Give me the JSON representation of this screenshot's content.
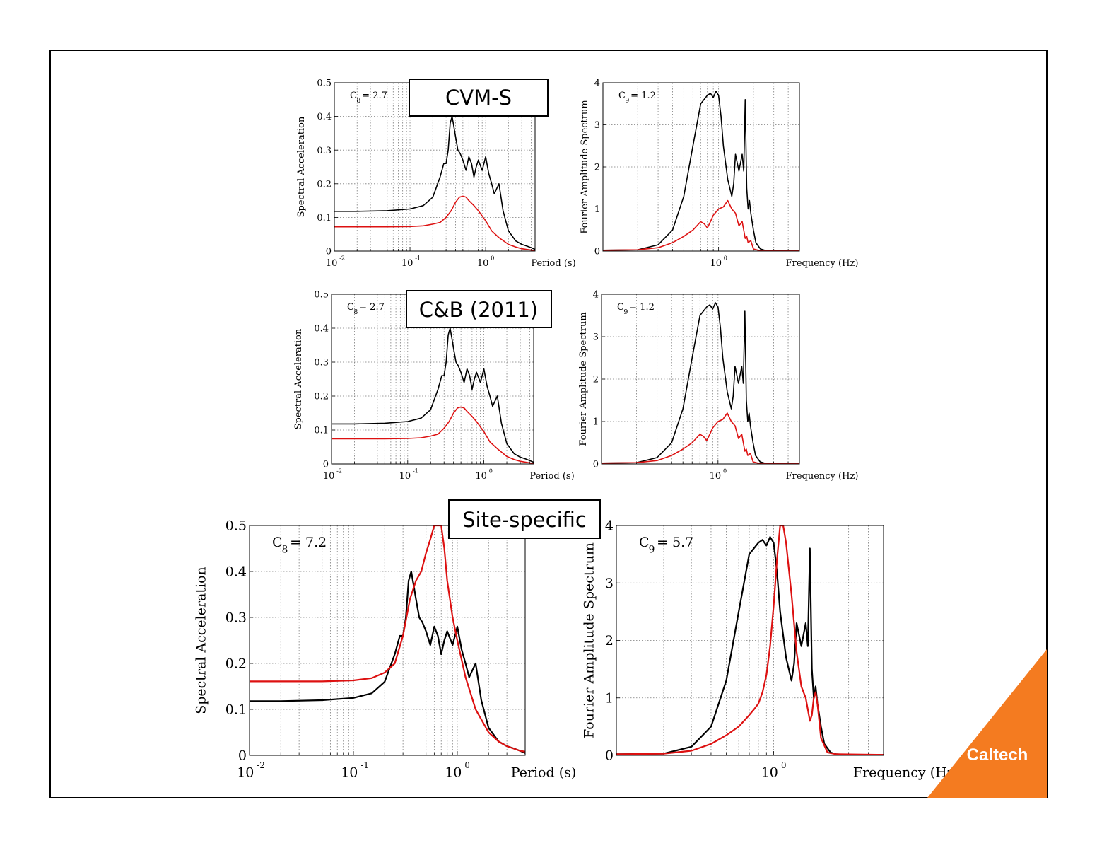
{
  "slide": {
    "labels": {
      "cvm": "CVM-S",
      "cb": "C&B (2011)",
      "site": "Site-specific"
    },
    "logo": "Caltech",
    "colors": {
      "black_curve": "#000000",
      "red_curve": "#dd1111",
      "logo_bg": "#f47b20",
      "frame": "#000000",
      "grid": "#7a7a7a"
    }
  },
  "chart_data": [
    {
      "id": "sa_cvm",
      "type": "line",
      "xscale": "log",
      "xlim": [
        0.01,
        4.5
      ],
      "ylim": [
        0,
        0.5
      ],
      "yticks": [
        0,
        0.1,
        0.2,
        0.3,
        0.4,
        0.5
      ],
      "ytick_labels": [
        "0",
        "0.1",
        "0.2",
        "0.3",
        "0.4",
        "0.5"
      ],
      "xtick_labels": [
        "-2",
        "-1",
        "0"
      ],
      "ylabel": "Spectral Acceleration",
      "xlabel": "Period (s)",
      "annotation": {
        "base": "C",
        "sub": "8",
        "text": " = 2.7"
      },
      "series": [
        {
          "color": "black",
          "x": [
            0.01,
            0.02,
            0.05,
            0.1,
            0.15,
            0.2,
            0.25,
            0.28,
            0.3,
            0.32,
            0.34,
            0.36,
            0.38,
            0.4,
            0.43,
            0.46,
            0.5,
            0.55,
            0.6,
            0.65,
            0.7,
            0.75,
            0.8,
            0.9,
            1.0,
            1.1,
            1.2,
            1.3,
            1.5,
            1.7,
            2.0,
            2.5,
            3.0,
            3.5,
            4.0,
            4.5
          ],
          "y": [
            0.118,
            0.118,
            0.12,
            0.125,
            0.135,
            0.16,
            0.22,
            0.26,
            0.26,
            0.3,
            0.38,
            0.4,
            0.37,
            0.34,
            0.3,
            0.29,
            0.27,
            0.24,
            0.28,
            0.26,
            0.22,
            0.25,
            0.27,
            0.24,
            0.28,
            0.23,
            0.2,
            0.17,
            0.2,
            0.12,
            0.06,
            0.03,
            0.02,
            0.015,
            0.01,
            0.005
          ]
        },
        {
          "color": "red",
          "x": [
            0.01,
            0.05,
            0.1,
            0.15,
            0.2,
            0.25,
            0.3,
            0.35,
            0.4,
            0.45,
            0.5,
            0.55,
            0.6,
            0.7,
            0.8,
            1.0,
            1.2,
            1.5,
            2.0,
            2.5,
            3.0,
            4.0,
            4.5
          ],
          "y": [
            0.072,
            0.072,
            0.073,
            0.075,
            0.08,
            0.085,
            0.1,
            0.12,
            0.145,
            0.16,
            0.163,
            0.16,
            0.15,
            0.135,
            0.12,
            0.09,
            0.06,
            0.04,
            0.02,
            0.012,
            0.007,
            0.003,
            0.002
          ]
        }
      ]
    },
    {
      "id": "fas_cvm",
      "type": "line",
      "xscale": "log",
      "xlim": [
        0.1,
        5
      ],
      "ylim": [
        0,
        4
      ],
      "yticks": [
        0,
        1,
        2,
        3,
        4
      ],
      "ytick_labels": [
        "0",
        "1",
        "2",
        "3",
        "4"
      ],
      "xtick_labels": [
        "0"
      ],
      "ylabel": "Fourier Amplitude Spectrum",
      "xlabel": "Frequency (Hz)",
      "annotation": {
        "base": "C",
        "sub": "9",
        "text": " = 1.2"
      },
      "series": [
        {
          "color": "black",
          "x": [
            0.1,
            0.2,
            0.3,
            0.4,
            0.5,
            0.6,
            0.7,
            0.8,
            0.85,
            0.9,
            0.95,
            1.0,
            1.05,
            1.1,
            1.2,
            1.3,
            1.35,
            1.4,
            1.5,
            1.6,
            1.65,
            1.7,
            1.75,
            1.8,
            1.85,
            1.9,
            2.0,
            2.1,
            2.3,
            2.5,
            3.0,
            5.0
          ],
          "y": [
            0.02,
            0.03,
            0.15,
            0.5,
            1.3,
            2.5,
            3.5,
            3.7,
            3.75,
            3.65,
            3.8,
            3.7,
            3.2,
            2.5,
            1.7,
            1.3,
            1.6,
            2.3,
            1.9,
            2.3,
            1.9,
            3.6,
            1.5,
            1.0,
            1.2,
            0.9,
            0.5,
            0.2,
            0.05,
            0.02,
            0.01,
            0.01
          ]
        },
        {
          "color": "red",
          "x": [
            0.1,
            0.2,
            0.3,
            0.4,
            0.5,
            0.6,
            0.7,
            0.75,
            0.8,
            0.85,
            0.9,
            1.0,
            1.1,
            1.2,
            1.3,
            1.4,
            1.5,
            1.6,
            1.65,
            1.7,
            1.75,
            1.8,
            1.9,
            2.0,
            2.2,
            5.0
          ],
          "y": [
            0.02,
            0.03,
            0.08,
            0.2,
            0.35,
            0.5,
            0.7,
            0.65,
            0.55,
            0.7,
            0.85,
            1.0,
            1.05,
            1.2,
            1.0,
            0.9,
            0.6,
            0.7,
            0.5,
            0.3,
            0.35,
            0.2,
            0.25,
            0.05,
            0.02,
            0.01
          ]
        }
      ]
    },
    {
      "id": "sa_cb",
      "type": "line",
      "xscale": "log",
      "xlim": [
        0.01,
        4.5
      ],
      "ylim": [
        0,
        0.5
      ],
      "yticks": [
        0,
        0.1,
        0.2,
        0.3,
        0.4,
        0.5
      ],
      "ytick_labels": [
        "0",
        "0.1",
        "0.2",
        "0.3",
        "0.4",
        "0.5"
      ],
      "xtick_labels": [
        "-2",
        "-1",
        "0"
      ],
      "ylabel": "Spectral Acceleration",
      "xlabel": "Period (s)",
      "annotation": {
        "base": "C",
        "sub": "8",
        "text": " = 2.7"
      },
      "series": [
        {
          "color": "black",
          "x": [
            0.01,
            0.02,
            0.05,
            0.1,
            0.15,
            0.2,
            0.25,
            0.28,
            0.3,
            0.32,
            0.34,
            0.36,
            0.38,
            0.4,
            0.43,
            0.46,
            0.5,
            0.55,
            0.6,
            0.65,
            0.7,
            0.75,
            0.8,
            0.9,
            1.0,
            1.1,
            1.2,
            1.3,
            1.5,
            1.7,
            2.0,
            2.5,
            3.0,
            3.5,
            4.0,
            4.5
          ],
          "y": [
            0.118,
            0.118,
            0.12,
            0.125,
            0.135,
            0.16,
            0.22,
            0.26,
            0.26,
            0.3,
            0.38,
            0.4,
            0.37,
            0.34,
            0.3,
            0.29,
            0.27,
            0.24,
            0.28,
            0.26,
            0.22,
            0.25,
            0.27,
            0.24,
            0.28,
            0.23,
            0.2,
            0.17,
            0.2,
            0.12,
            0.06,
            0.03,
            0.02,
            0.015,
            0.01,
            0.005
          ]
        },
        {
          "color": "red",
          "x": [
            0.01,
            0.05,
            0.1,
            0.15,
            0.2,
            0.25,
            0.3,
            0.35,
            0.4,
            0.45,
            0.5,
            0.55,
            0.6,
            0.7,
            0.8,
            1.0,
            1.2,
            1.5,
            2.0,
            2.5,
            3.0,
            4.0,
            4.5
          ],
          "y": [
            0.074,
            0.074,
            0.075,
            0.077,
            0.082,
            0.088,
            0.105,
            0.125,
            0.15,
            0.165,
            0.168,
            0.165,
            0.155,
            0.14,
            0.125,
            0.095,
            0.065,
            0.045,
            0.022,
            0.013,
            0.008,
            0.003,
            0.002
          ]
        }
      ]
    },
    {
      "id": "fas_cb",
      "type": "line",
      "xscale": "log",
      "xlim": [
        0.1,
        5
      ],
      "ylim": [
        0,
        4
      ],
      "yticks": [
        0,
        1,
        2,
        3,
        4
      ],
      "ytick_labels": [
        "0",
        "1",
        "2",
        "3",
        "4"
      ],
      "xtick_labels": [
        "0"
      ],
      "ylabel": "Fourier Amplitude Spectrum",
      "xlabel": "Frequency (Hz)",
      "annotation": {
        "base": "C",
        "sub": "9",
        "text": " = 1.2"
      },
      "series": [
        {
          "color": "black",
          "x": [
            0.1,
            0.2,
            0.3,
            0.4,
            0.5,
            0.6,
            0.7,
            0.8,
            0.85,
            0.9,
            0.95,
            1.0,
            1.05,
            1.1,
            1.2,
            1.3,
            1.35,
            1.4,
            1.5,
            1.6,
            1.65,
            1.7,
            1.75,
            1.8,
            1.85,
            1.9,
            2.0,
            2.1,
            2.3,
            2.5,
            3.0,
            5.0
          ],
          "y": [
            0.02,
            0.03,
            0.15,
            0.5,
            1.3,
            2.5,
            3.5,
            3.7,
            3.75,
            3.65,
            3.8,
            3.7,
            3.2,
            2.5,
            1.7,
            1.3,
            1.6,
            2.3,
            1.9,
            2.3,
            1.9,
            3.6,
            1.5,
            1.0,
            1.2,
            0.9,
            0.5,
            0.2,
            0.05,
            0.02,
            0.01,
            0.01
          ]
        },
        {
          "color": "red",
          "x": [
            0.1,
            0.2,
            0.3,
            0.4,
            0.5,
            0.6,
            0.7,
            0.75,
            0.8,
            0.85,
            0.9,
            1.0,
            1.1,
            1.2,
            1.3,
            1.4,
            1.5,
            1.6,
            1.65,
            1.7,
            1.75,
            1.8,
            1.9,
            2.0,
            2.2,
            5.0
          ],
          "y": [
            0.02,
            0.03,
            0.08,
            0.2,
            0.35,
            0.5,
            0.7,
            0.65,
            0.55,
            0.7,
            0.85,
            1.0,
            1.05,
            1.2,
            1.0,
            0.9,
            0.6,
            0.7,
            0.5,
            0.3,
            0.35,
            0.2,
            0.25,
            0.05,
            0.02,
            0.01
          ]
        }
      ]
    },
    {
      "id": "sa_site",
      "type": "line",
      "xscale": "log",
      "xlim": [
        0.01,
        4.5
      ],
      "ylim": [
        0,
        0.5
      ],
      "yticks": [
        0,
        0.1,
        0.2,
        0.3,
        0.4,
        0.5
      ],
      "ytick_labels": [
        "0",
        "0.1",
        "0.2",
        "0.3",
        "0.4",
        "0.5"
      ],
      "xtick_labels": [
        "-2",
        "-1",
        "0"
      ],
      "ylabel": "Spectral Acceleration",
      "xlabel": "Period (s)",
      "annotation": {
        "base": "C",
        "sub": "8",
        "text": " = 7.2"
      },
      "series": [
        {
          "color": "black",
          "x": [
            0.01,
            0.02,
            0.05,
            0.1,
            0.15,
            0.2,
            0.25,
            0.28,
            0.3,
            0.32,
            0.34,
            0.36,
            0.38,
            0.4,
            0.43,
            0.46,
            0.5,
            0.55,
            0.6,
            0.65,
            0.7,
            0.75,
            0.8,
            0.9,
            1.0,
            1.1,
            1.2,
            1.3,
            1.5,
            1.7,
            2.0,
            2.5,
            3.0,
            3.5,
            4.0,
            4.5
          ],
          "y": [
            0.118,
            0.118,
            0.12,
            0.125,
            0.135,
            0.16,
            0.22,
            0.26,
            0.26,
            0.3,
            0.38,
            0.4,
            0.37,
            0.34,
            0.3,
            0.29,
            0.27,
            0.24,
            0.28,
            0.26,
            0.22,
            0.25,
            0.27,
            0.24,
            0.28,
            0.23,
            0.2,
            0.17,
            0.2,
            0.12,
            0.06,
            0.03,
            0.02,
            0.015,
            0.01,
            0.005
          ]
        },
        {
          "color": "red",
          "x": [
            0.01,
            0.05,
            0.1,
            0.15,
            0.2,
            0.25,
            0.3,
            0.35,
            0.4,
            0.45,
            0.5,
            0.55,
            0.6,
            0.65,
            0.7,
            0.75,
            0.8,
            0.9,
            1.0,
            1.2,
            1.5,
            2.0,
            2.5,
            3.0,
            4.0,
            4.5
          ],
          "y": [
            0.161,
            0.161,
            0.163,
            0.168,
            0.18,
            0.2,
            0.26,
            0.34,
            0.38,
            0.4,
            0.44,
            0.47,
            0.5,
            0.5,
            0.5,
            0.45,
            0.38,
            0.3,
            0.25,
            0.17,
            0.1,
            0.05,
            0.03,
            0.02,
            0.01,
            0.008
          ]
        }
      ]
    },
    {
      "id": "fas_site",
      "type": "line",
      "xscale": "log",
      "xlim": [
        0.1,
        5
      ],
      "ylim": [
        0,
        4
      ],
      "yticks": [
        0,
        1,
        2,
        3,
        4
      ],
      "ytick_labels": [
        "0",
        "1",
        "2",
        "3",
        "4"
      ],
      "xtick_labels": [
        "0"
      ],
      "ylabel": "Fourier Amplitude Spectrum",
      "xlabel": "Frequency (Hz)",
      "annotation": {
        "base": "C",
        "sub": "9",
        "text": " = 5.7"
      },
      "series": [
        {
          "color": "black",
          "x": [
            0.1,
            0.2,
            0.3,
            0.4,
            0.5,
            0.6,
            0.7,
            0.8,
            0.85,
            0.9,
            0.95,
            1.0,
            1.05,
            1.1,
            1.2,
            1.3,
            1.35,
            1.4,
            1.5,
            1.6,
            1.65,
            1.7,
            1.75,
            1.8,
            1.85,
            1.9,
            2.0,
            2.1,
            2.3,
            2.5,
            3.0,
            5.0
          ],
          "y": [
            0.02,
            0.03,
            0.15,
            0.5,
            1.3,
            2.5,
            3.5,
            3.7,
            3.75,
            3.65,
            3.8,
            3.7,
            3.2,
            2.5,
            1.7,
            1.3,
            1.6,
            2.3,
            1.9,
            2.3,
            1.9,
            3.6,
            1.5,
            1.0,
            1.2,
            0.9,
            0.5,
            0.2,
            0.05,
            0.02,
            0.01,
            0.01
          ]
        },
        {
          "color": "red",
          "x": [
            0.1,
            0.2,
            0.3,
            0.4,
            0.5,
            0.6,
            0.7,
            0.75,
            0.8,
            0.85,
            0.9,
            0.95,
            1.0,
            1.05,
            1.1,
            1.15,
            1.2,
            1.3,
            1.4,
            1.5,
            1.6,
            1.7,
            1.75,
            1.8,
            1.85,
            1.9,
            2.0,
            2.2,
            2.5,
            5.0
          ],
          "y": [
            0.02,
            0.03,
            0.08,
            0.2,
            0.35,
            0.5,
            0.7,
            0.8,
            0.9,
            1.1,
            1.4,
            1.9,
            2.6,
            3.4,
            4.0,
            4.0,
            3.7,
            2.8,
            1.8,
            1.2,
            1.0,
            0.6,
            0.7,
            1.0,
            1.1,
            0.9,
            0.3,
            0.05,
            0.02,
            0.01
          ]
        }
      ]
    }
  ]
}
